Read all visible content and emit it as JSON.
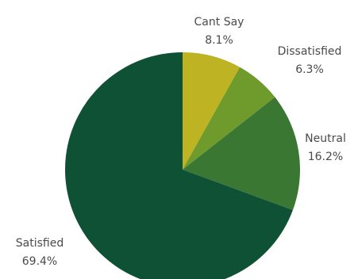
{
  "chart_data": {
    "type": "pie",
    "start_angle_deg": 0,
    "direction": "clockwise",
    "slices": [
      {
        "label": "Cant Say",
        "value": 8.1,
        "value_label": "8.1%",
        "color": "#bdb323"
      },
      {
        "label": "Dissatisfied",
        "value": 6.3,
        "value_label": "6.3%",
        "color": "#6f9a2c"
      },
      {
        "label": "Neutral",
        "value": 16.2,
        "value_label": "16.2%",
        "color": "#3a7733"
      },
      {
        "label": "Satisfied",
        "value": 69.4,
        "value_label": "69.4%",
        "color": "#0f5135"
      }
    ]
  }
}
